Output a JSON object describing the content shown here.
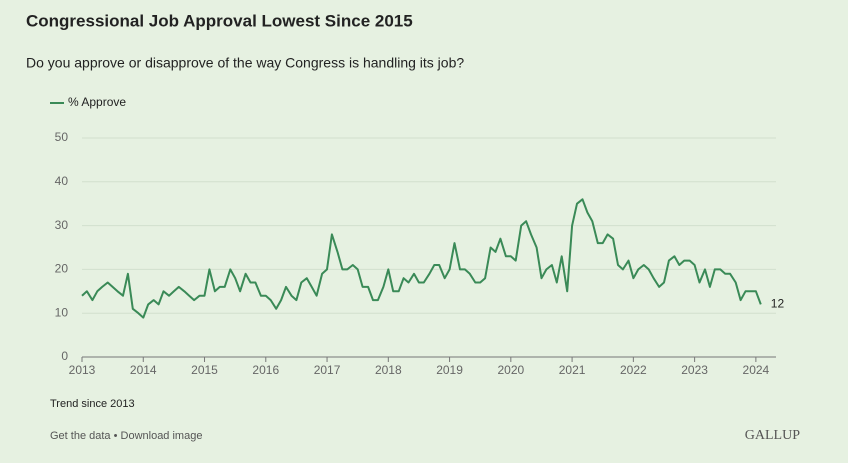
{
  "chart_data": {
    "type": "line",
    "title": "Congressional Job Approval Lowest Since 2015",
    "subtitle": "Do you approve or disapprove of the way Congress is handling its job?",
    "note": "Trend since 2013",
    "links": "Get the data • Download image",
    "brand": "GALLUP",
    "xlim": [
      2013,
      2024.1
    ],
    "xticks": [
      2013,
      2014,
      2015,
      2016,
      2017,
      2018,
      2019,
      2020,
      2021,
      2022,
      2023,
      2024
    ],
    "ylim": [
      0,
      50
    ],
    "yticks": [
      0,
      10,
      20,
      30,
      40,
      50
    ],
    "grid": true,
    "series": [
      {
        "name": "% Approve",
        "color": "#3a8a57",
        "x": [
          2013.0,
          2013.08,
          2013.17,
          2013.25,
          2013.33,
          2013.42,
          2013.5,
          2013.58,
          2013.67,
          2013.75,
          2013.83,
          2013.92,
          2014.0,
          2014.08,
          2014.17,
          2014.25,
          2014.33,
          2014.42,
          2014.5,
          2014.58,
          2014.67,
          2014.75,
          2014.83,
          2014.92,
          2015.0,
          2015.08,
          2015.17,
          2015.25,
          2015.33,
          2015.42,
          2015.5,
          2015.58,
          2015.67,
          2015.75,
          2015.83,
          2015.92,
          2016.0,
          2016.08,
          2016.17,
          2016.25,
          2016.33,
          2016.42,
          2016.5,
          2016.58,
          2016.67,
          2016.75,
          2016.83,
          2016.92,
          2017.0,
          2017.08,
          2017.17,
          2017.25,
          2017.33,
          2017.42,
          2017.5,
          2017.58,
          2017.67,
          2017.75,
          2017.83,
          2017.92,
          2018.0,
          2018.08,
          2018.17,
          2018.25,
          2018.33,
          2018.42,
          2018.5,
          2018.58,
          2018.67,
          2018.75,
          2018.83,
          2018.92,
          2019.0,
          2019.08,
          2019.17,
          2019.25,
          2019.33,
          2019.42,
          2019.5,
          2019.58,
          2019.67,
          2019.75,
          2019.83,
          2019.92,
          2020.0,
          2020.08,
          2020.17,
          2020.25,
          2020.33,
          2020.42,
          2020.5,
          2020.58,
          2020.67,
          2020.75,
          2020.83,
          2020.92,
          2021.0,
          2021.08,
          2021.17,
          2021.25,
          2021.33,
          2021.42,
          2021.5,
          2021.58,
          2021.67,
          2021.75,
          2021.83,
          2021.92,
          2022.0,
          2022.08,
          2022.17,
          2022.25,
          2022.33,
          2022.42,
          2022.5,
          2022.58,
          2022.67,
          2022.75,
          2022.83,
          2022.92,
          2023.0,
          2023.08,
          2023.17,
          2023.25,
          2023.33,
          2023.42,
          2023.5,
          2023.58,
          2023.67,
          2023.75,
          2023.83,
          2023.92,
          2024.0,
          2024.08
        ],
        "values": [
          14,
          15,
          13,
          15,
          16,
          17,
          16,
          15,
          14,
          19,
          11,
          10,
          9,
          12,
          13,
          12,
          15,
          14,
          15,
          16,
          15,
          14,
          13,
          14,
          14,
          20,
          15,
          16,
          16,
          20,
          18,
          15,
          19,
          17,
          17,
          14,
          14,
          13,
          11,
          13,
          16,
          14,
          13,
          17,
          18,
          16,
          14,
          19,
          20,
          28,
          24,
          20,
          20,
          21,
          20,
          16,
          16,
          13,
          13,
          16,
          20,
          15,
          15,
          18,
          17,
          19,
          17,
          17,
          19,
          21,
          21,
          18,
          20,
          26,
          20,
          20,
          19,
          17,
          17,
          18,
          25,
          24,
          27,
          23,
          23,
          22,
          30,
          31,
          28,
          25,
          18,
          20,
          21,
          17,
          23,
          15,
          30,
          35,
          36,
          33,
          31,
          26,
          26,
          28,
          27,
          21,
          20,
          22,
          18,
          20,
          21,
          20,
          18,
          16,
          17,
          22,
          23,
          21,
          22,
          22,
          21,
          17,
          20,
          16,
          20,
          20,
          19,
          19,
          17,
          13,
          15,
          15,
          15,
          12
        ]
      }
    ]
  }
}
